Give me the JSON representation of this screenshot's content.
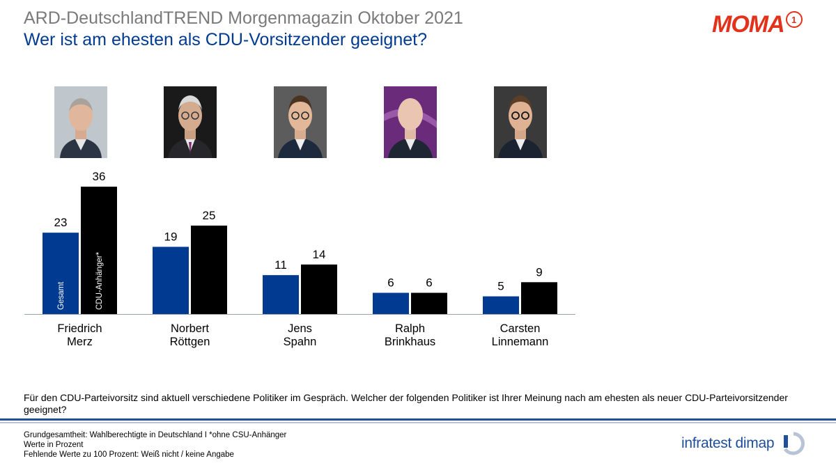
{
  "header": {
    "title": "ARD-DeutschlandTREND Morgenmagazin Oktober 2021",
    "subtitle": "Wer ist am ehesten als CDU-Vorsitzender geeignet?",
    "logo_text": "MOMA",
    "logo_badge": "1"
  },
  "colors": {
    "gesamt": "#003b91",
    "cdu": "#000000",
    "moma": "#e2321b",
    "dimap": "#1f4e9c"
  },
  "chart_data": {
    "type": "bar",
    "categories": [
      [
        "Friedrich",
        "Merz"
      ],
      [
        "Norbert",
        "Röttgen"
      ],
      [
        "Jens",
        "Spahn"
      ],
      [
        "Ralph",
        "Brinkhaus"
      ],
      [
        "Carsten",
        "Linnemann"
      ]
    ],
    "series": [
      {
        "name": "Gesamt",
        "values": [
          23,
          19,
          11,
          6,
          5
        ]
      },
      {
        "name": "CDU-Anhänger*",
        "values": [
          36,
          25,
          14,
          6,
          9
        ]
      }
    ],
    "ylim": [
      0,
      36
    ],
    "unit": "Prozent",
    "legend": "inside-first-bars"
  },
  "question": "Für den CDU-Parteivorsitz sind aktuell verschiedene Politiker im Gespräch. Welcher der folgenden Politiker ist Ihrer Meinung nach am ehesten als neuer CDU-Parteivorsitzender geeignet?",
  "footer": {
    "notes": [
      "Grundgesamtheit: Wahlberechtigte in Deutschland I *ohne CSU-Anhänger",
      "Werte in Prozent",
      "Fehlende Werte zu 100 Prozent: Weiß nicht / keine Angabe"
    ],
    "brand": "infratest dimap"
  }
}
